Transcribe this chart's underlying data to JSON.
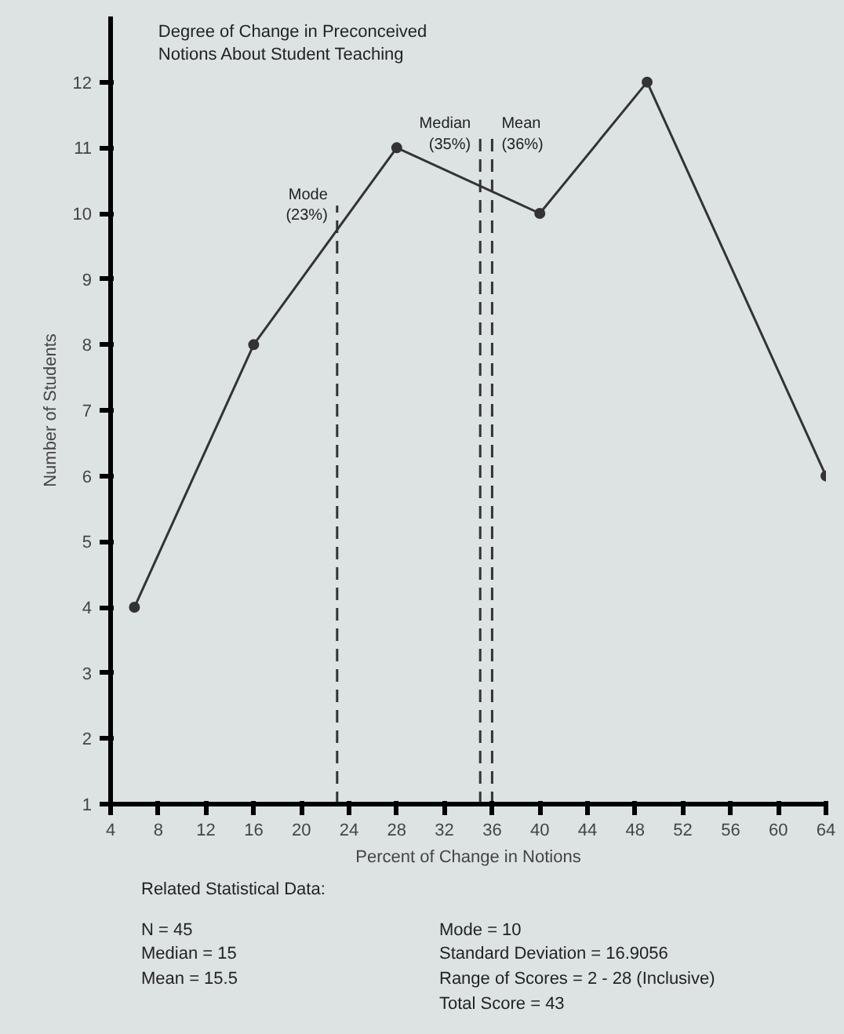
{
  "chart_data": {
    "type": "line",
    "title": "Degree of Change in Preconceived\nNotions About Student Teaching",
    "xlabel": "Percent of Change in Notions",
    "ylabel": "Number of Students",
    "x": [
      6,
      16,
      28,
      40,
      49,
      64
    ],
    "series": [
      {
        "color": "#333333",
        "values": [
          4,
          8,
          11,
          10,
          12,
          6
        ]
      }
    ],
    "xlim": [
      4,
      64
    ],
    "xticks": [
      4,
      8,
      12,
      16,
      20,
      24,
      28,
      32,
      36,
      40,
      44,
      48,
      52,
      56,
      60,
      64
    ],
    "ylim": [
      1,
      13
    ],
    "yticks": [
      1,
      2,
      3,
      4,
      5,
      6,
      7,
      8,
      9,
      10,
      11,
      12
    ],
    "ref_lines": [
      {
        "axis": "x",
        "value": 23,
        "label": "Mode\n(23%)",
        "line_style": "dashed",
        "color": "#333333"
      },
      {
        "axis": "x",
        "value": 35,
        "label": "Median\n(35%)",
        "line_style": "dashed",
        "color": "#333333"
      },
      {
        "axis": "x",
        "value": 36,
        "label": "Mean\n(36%)",
        "line_style": "dashed",
        "color": "#333333"
      }
    ],
    "annotations": [
      "Related Statistical Data:",
      "N = 45",
      "Median = 15",
      "Mean = 15.5",
      "Mode = 10",
      "Standard Deviation = 16.9056",
      "Range of Scores = 2 - 28 (Inclusive)",
      "Total Score = 43"
    ],
    "grid": false,
    "marker": "circle",
    "line_style": "solid"
  }
}
